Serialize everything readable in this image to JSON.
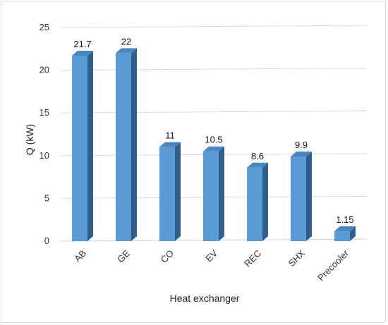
{
  "chart_data": {
    "type": "bar",
    "title": "",
    "xlabel": "Heat exchanger",
    "ylabel": "Q (kW)",
    "categories": [
      "AB",
      "GE",
      "CO",
      "EV",
      "REC",
      "SHX",
      "Precooler"
    ],
    "values": [
      21.7,
      22,
      11,
      10.5,
      8.6,
      9.9,
      1.15
    ],
    "data_labels": [
      "21.7",
      "22",
      "11",
      "10.5",
      "8.6",
      "9.9",
      "1.15"
    ],
    "yticks": [
      "0",
      "5",
      "10",
      "15",
      "20",
      "25"
    ],
    "ylim": [
      0,
      25
    ],
    "grid": true,
    "legend": "none",
    "style": "3d-column",
    "colors": {
      "bar_front": "#5b9bd5",
      "bar_side": "#2f5f8c",
      "bar_top": "#4a86c0",
      "grid": "#d9d9d9",
      "frame": "#d9d9d9"
    }
  }
}
